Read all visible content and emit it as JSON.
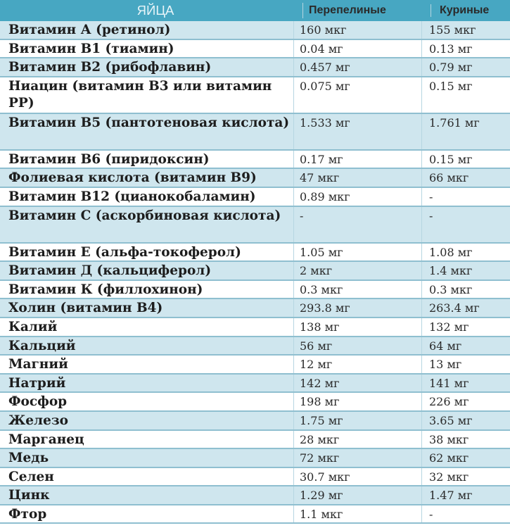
{
  "header": {
    "col1": "ЯЙЦА",
    "col2": "Перепелиные",
    "col3": "Куриные"
  },
  "colors": {
    "header": "#47a7c2",
    "band": "#cfe6ee",
    "border": "#8fbfd0"
  },
  "rows": [
    {
      "name": "Витамин А (ретинол)",
      "quail": "160 мкг",
      "chicken": "155 мкг"
    },
    {
      "name": "Витамин В1 (тиамин)",
      "quail": "0.04 мг",
      "chicken": "0.13 мг"
    },
    {
      "name": "Витамин В2 (рибофлавин)",
      "quail": "0.457 мг",
      "chicken": "0.79 мг"
    },
    {
      "name": "Ниацин (витамин В3 или витамин РР)",
      "quail": "0.075 мг",
      "chicken": "0.15 мг"
    },
    {
      "name": "Витамин В5 (пантотеновая кислота)",
      "quail": "1.533 мг",
      "chicken": "1.761 мг"
    },
    {
      "name": "Витамин В6 (пиридоксин)",
      "quail": "0.17 мг",
      "chicken": "0.15 мг"
    },
    {
      "name": "Фолиевая кислота (витамин В9)",
      "quail": "47 мкг",
      "chicken": "66 мкг"
    },
    {
      "name": "Витамин В12 (цианокобаламин)",
      "quail": "0.89 мкг",
      "chicken": "-"
    },
    {
      "name": "Витамин С (аскорбиновая кислота)",
      "quail": "-",
      "chicken": "-"
    },
    {
      "name": "Витамин Е (альфа-токоферол)",
      "quail": "1.05 мг",
      "chicken": "1.08 мг"
    },
    {
      "name": "Витамин Д (кальциферол)",
      "quail": "2 мкг",
      "chicken": "1.4 мкг"
    },
    {
      "name": "Витамин К (филлохинон)",
      "quail": "0.3 мкг",
      "chicken": "0.3 мкг"
    },
    {
      "name": "Холин (витамин В4)",
      "quail": "293.8 мг",
      "chicken": "263.4 мг"
    },
    {
      "name": "Калий",
      "quail": "138 мг",
      "chicken": "132 мг"
    },
    {
      "name": "Кальций",
      "quail": "56 мг",
      "chicken": "64 мг"
    },
    {
      "name": "Магний",
      "quail": "12 мг",
      "chicken": "13 мг"
    },
    {
      "name": "Натрий",
      "quail": "142 мг",
      "chicken": "141 мг"
    },
    {
      "name": "Фосфор",
      "quail": "198 мг",
      "chicken": "226 мг"
    },
    {
      "name": "Железо",
      "quail": "1.75 мг",
      "chicken": "3.65 мг"
    },
    {
      "name": "Марганец",
      "quail": "28 мкг",
      "chicken": "38 мкг"
    },
    {
      "name": "Медь",
      "quail": "72 мкг",
      "chicken": "62 мкг"
    },
    {
      "name": "Селен",
      "quail": "30.7 мкг",
      "chicken": "32 мкг"
    },
    {
      "name": "Цинк",
      "quail": "1.29 мг",
      "chicken": "1.47 мг"
    },
    {
      "name": "Фтор",
      "quail": "1.1 мкг",
      "chicken": "-"
    }
  ]
}
